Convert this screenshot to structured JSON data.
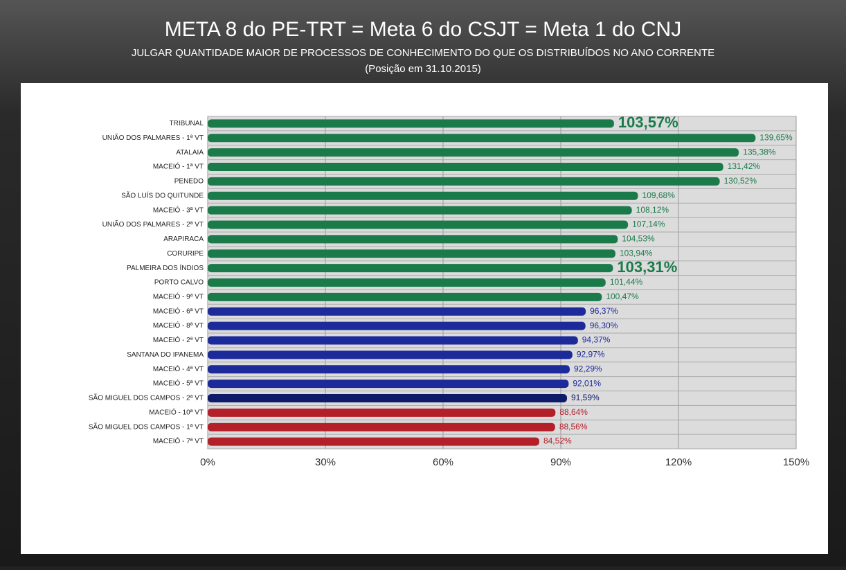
{
  "chart_data": {
    "type": "hbar",
    "title": "META 8 do PE-TRT = Meta 6 do CSJT = Meta 1 do CNJ",
    "subtitle": "JULGAR QUANTIDADE MAIOR DE PROCESSOS DE CONHECIMENTO DO QUE OS DISTRIBUÍDOS NO ANO CORRENTE",
    "note": "(Posição em 31.10.2015)",
    "categories": [
      "TRIBUNAL",
      "UNIÃO DOS PALMARES - 1ª VT",
      "ATALAIA",
      "MACEIÓ - 1ª VT",
      "PENEDO",
      "SÃO LUÍS DO QUITUNDE",
      "MACEIÓ - 3ª VT",
      "UNIÃO DOS PALMARES - 2ª VT",
      "ARAPIRACA",
      "CORURIPE",
      "PALMEIRA DOS ÍNDIOS",
      "PORTO CALVO",
      "MACEIÓ - 9ª VT",
      "MACEIÓ - 6ª VT",
      "MACEIÓ - 8ª VT",
      "MACEIÓ - 2ª VT",
      "SANTANA DO IPANEMA",
      "MACEIÓ - 4ª VT",
      "MACEIÓ - 5ª VT",
      "SÃO MIGUEL DOS CAMPOS - 2ª VT",
      "MACEIÓ - 10ª VT",
      "SÃO MIGUEL DOS CAMPOS - 1ª VT",
      "MACEIÓ - 7ª VT"
    ],
    "values": [
      103.57,
      139.65,
      135.38,
      131.42,
      130.52,
      109.68,
      108.12,
      107.14,
      104.53,
      103.94,
      103.31,
      101.44,
      100.47,
      96.37,
      96.3,
      94.37,
      92.97,
      92.29,
      92.01,
      91.59,
      88.64,
      88.56,
      84.52
    ],
    "value_labels": [
      "103,57%",
      "139,65%",
      "135,38%",
      "131,42%",
      "130,52%",
      "109,68%",
      "108,12%",
      "107,14%",
      "104,53%",
      "103,94%",
      "103,31%",
      "101,44%",
      "100,47%",
      "96,37%",
      "96,30%",
      "94,37%",
      "92,97%",
      "92,29%",
      "92,01%",
      "91,59%",
      "88,64%",
      "88,56%",
      "84,52%"
    ],
    "colors": [
      "#1a7a4a",
      "#1a7a4a",
      "#1a7a4a",
      "#1a7a4a",
      "#1a7a4a",
      "#1a7a4a",
      "#1a7a4a",
      "#1a7a4a",
      "#1a7a4a",
      "#1a7a4a",
      "#1a7a4a",
      "#1a7a4a",
      "#1a7a4a",
      "#1c2a9a",
      "#1c2a9a",
      "#1c2a9a",
      "#1c2a9a",
      "#1c2a9a",
      "#1c2a9a",
      "#0e1a6a",
      "#b3202a",
      "#b3202a",
      "#b3202a"
    ],
    "label_emphasis": [
      true,
      false,
      false,
      false,
      false,
      false,
      false,
      false,
      false,
      false,
      true,
      false,
      false,
      false,
      false,
      false,
      false,
      false,
      false,
      false,
      false,
      false,
      false
    ],
    "xlim": [
      0,
      150
    ],
    "xticks": [
      {
        "value": 0,
        "label": "0%"
      },
      {
        "value": 30,
        "label": "30%"
      },
      {
        "value": 60,
        "label": "60%"
      },
      {
        "value": 90,
        "label": "90%"
      },
      {
        "value": 120,
        "label": "120%"
      },
      {
        "value": 150,
        "label": "150%"
      }
    ],
    "grid": true
  }
}
